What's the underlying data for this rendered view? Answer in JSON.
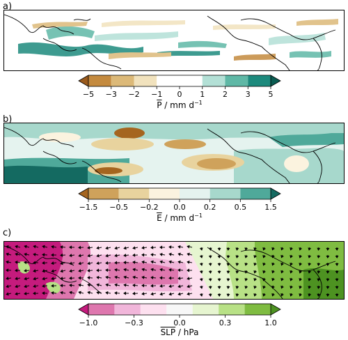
{
  "chart_data": [
    {
      "type": "heatmap",
      "panel_label": "a)",
      "colorbar": {
        "symbol": "P",
        "unit": "mm d",
        "unit_exponent": "−1",
        "levels": [
          -5,
          -3,
          -2,
          -1,
          0,
          1,
          2,
          3,
          5
        ],
        "tick_labels": [
          "−5",
          "−3",
          "−2",
          "−1",
          "0",
          "1",
          "2",
          "3",
          "5"
        ],
        "colors": [
          "#9a5a1c",
          "#c48a3e",
          "#dcb978",
          "#f1e2bd",
          "#ffffff",
          "#ffffff",
          "#b3e0d6",
          "#5fb8a6",
          "#1d8a7d",
          "#0a5c52"
        ]
      }
    },
    {
      "type": "heatmap",
      "panel_label": "b)",
      "colorbar": {
        "symbol": "E",
        "unit": "mm d",
        "unit_exponent": "−1",
        "levels": [
          -1.5,
          -0.5,
          -0.2,
          0.0,
          0.2,
          0.5,
          1.5
        ],
        "tick_labels": [
          "−1.5",
          "−0.5",
          "−0.2",
          "0.0",
          "0.2",
          "0.5",
          "1.5"
        ],
        "colors": [
          "#a5651f",
          "#cfa25b",
          "#e8d39e",
          "#fbf3df",
          "#e5f3ef",
          "#a7d8cc",
          "#4fa99a",
          "#146a61"
        ]
      }
    },
    {
      "type": "heatmap",
      "panel_label": "c)",
      "colorbar": {
        "symbol": "SLP",
        "unit": "hPa",
        "levels": [
          -1.0,
          -0.3,
          0.0,
          0.3,
          1.0
        ],
        "tick_labels": [
          "−1.0",
          "−0.3",
          "0.0",
          "0.3",
          "1.0"
        ],
        "colors": [
          "#c51b7d",
          "#de77ae",
          "#f1b6da",
          "#fde0ef",
          "#f7f7f7",
          "#e6f5d0",
          "#b8e186",
          "#7fbc41",
          "#4d9221"
        ]
      }
    }
  ]
}
